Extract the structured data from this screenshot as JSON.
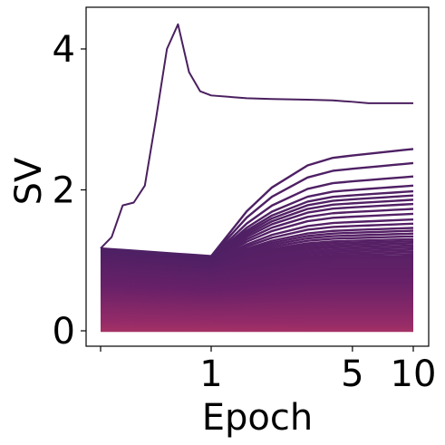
{
  "chart_data": {
    "type": "line",
    "xlabel": "Epoch",
    "ylabel": "SV",
    "x_scale": "symlog",
    "x_ticks": [
      {
        "value": 0,
        "label": ""
      },
      {
        "value": 1,
        "label": "1"
      },
      {
        "value": 5,
        "label": "5"
      },
      {
        "value": 10,
        "label": "10"
      }
    ],
    "y_ticks": [
      {
        "value": 0,
        "label": "0"
      },
      {
        "value": 2,
        "label": "2"
      },
      {
        "value": 4,
        "label": "4"
      }
    ],
    "xlim": [
      -0.12,
      11.5
    ],
    "ylim": [
      -0.22,
      4.55
    ],
    "grid": false,
    "legend": "none",
    "colormap": "magma",
    "colormap_range": [
      "#fcb07c",
      "#4e2064"
    ],
    "x": [
      0,
      0.1,
      0.2,
      0.3,
      0.4,
      0.5,
      0.6,
      0.7,
      0.8,
      0.9,
      1,
      1.5,
      2,
      3,
      4,
      5,
      6,
      7,
      8,
      9,
      10
    ],
    "series_top": [
      {
        "values": [
          1.17,
          1.33,
          1.78,
          1.82,
          2.06,
          3.0,
          4.0,
          4.35,
          3.67,
          3.4,
          3.34,
          3.3,
          3.29,
          3.28,
          3.27,
          3.25,
          3.23,
          3.23,
          3.23,
          3.23,
          3.23
        ]
      }
    ],
    "bundle": {
      "count": 120,
      "x_at_merge": 1,
      "value_at_merge_max": 1.06,
      "start_max": 1.17,
      "end_values_top": [
        2.58,
        2.38,
        2.19,
        2.06,
        1.98,
        1.92,
        1.86,
        1.8,
        1.73,
        1.66,
        1.58,
        1.52,
        1.46,
        1.42,
        1.38,
        1.34,
        1.3,
        1.27,
        1.24,
        1.21,
        1.18,
        1.15,
        1.12,
        1.09,
        1.06
      ],
      "end_max_rest": 1.05,
      "floor": 0.0
    }
  }
}
